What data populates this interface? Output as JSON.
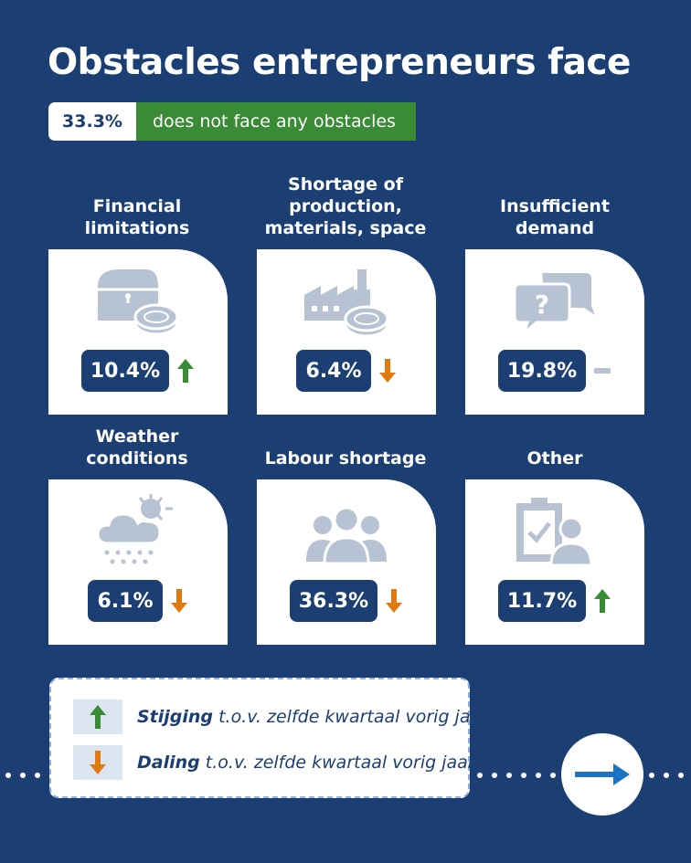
{
  "title": "Obstacles entrepreneurs face",
  "summary": {
    "percentage": "33.3%",
    "text": "does not face any obstacles"
  },
  "categories": [
    {
      "label_lines": [
        "Financial",
        "limitations"
      ],
      "value": "10.4%",
      "trend": "up",
      "icon": "treasure-chest-coin-icon"
    },
    {
      "label_lines": [
        "Shortage of",
        "production,",
        "materials, space"
      ],
      "value": "6.4%",
      "trend": "down",
      "icon": "factory-coin-icon"
    },
    {
      "label_lines": [
        "Insufficient",
        "demand"
      ],
      "value": "19.8%",
      "trend": "unchanged",
      "icon": "question-speech-bubbles-icon"
    },
    {
      "label_lines": [
        "Weather",
        "conditions"
      ],
      "value": "6.1%",
      "trend": "down",
      "icon": "sun-cloud-rain-icon"
    },
    {
      "label_lines": [
        "Labour shortage"
      ],
      "value": "36.3%",
      "trend": "down",
      "icon": "people-group-icon"
    },
    {
      "label_lines": [
        "Other"
      ],
      "value": "11.7%",
      "trend": "up",
      "icon": "clipboard-person-icon"
    }
  ],
  "legend": {
    "increase": {
      "bold": "Stijging",
      "rest": " t.o.v. zelfde kwartaal vorig jaar"
    },
    "decrease": {
      "bold": "Daling",
      "rest": " t.o.v. zelfde kwartaal vorig jaar"
    }
  },
  "colors": {
    "background": "#1c3f73",
    "green": "#3a8b35",
    "orange": "#e07a10",
    "icon_grey": "#b7c3d2",
    "neutral_dash": "#b7c3d2"
  },
  "navigation": {
    "next_icon": "arrow-right-icon"
  }
}
